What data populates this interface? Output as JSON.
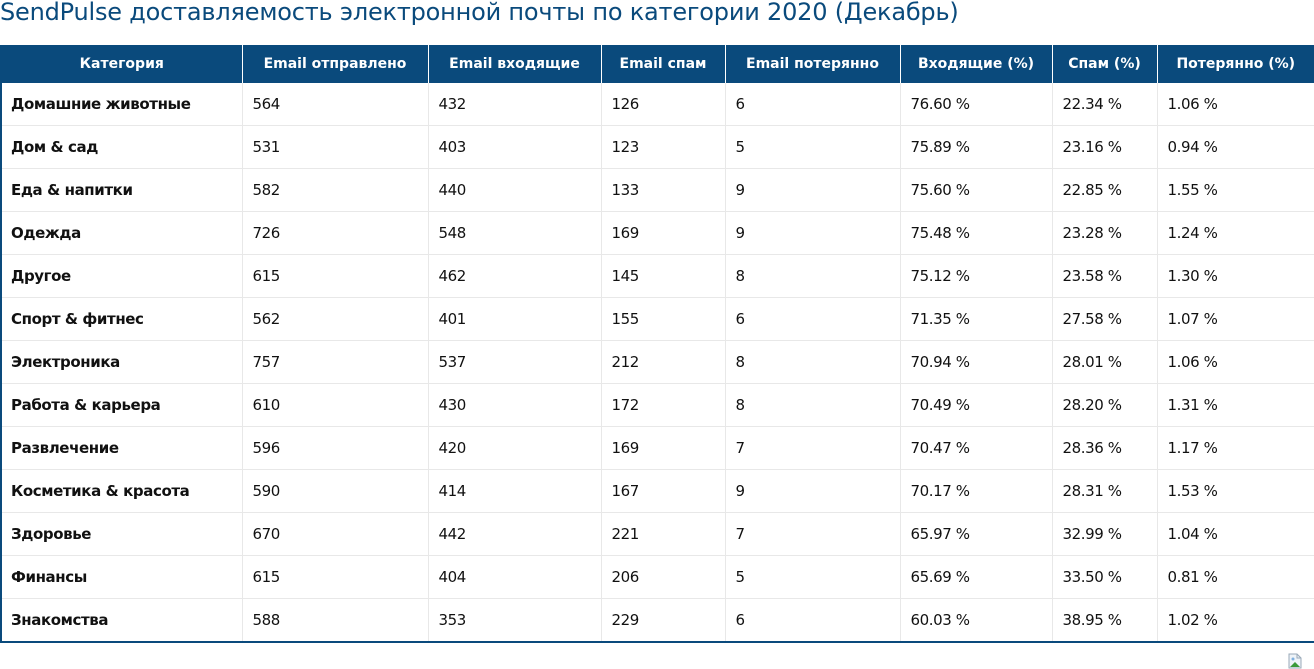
{
  "title": "SendPulse доставляемость электронной почты по категории 2020 (Декабрь)",
  "colors": {
    "header_bg": "#0a4a7c",
    "header_text": "#ffffff",
    "title": "#0a4a7c",
    "grid": "#e8e8e8"
  },
  "table": {
    "headers": [
      "Категория",
      "Email отправлено",
      "Email входящие",
      "Email спам",
      "Email потерянно",
      "Входящие (%)",
      "Спам (%)",
      "Потерянно (%)"
    ],
    "rows": [
      [
        "Домашние животные",
        "564",
        "432",
        "126",
        "6",
        "76.60 %",
        "22.34 %",
        "1.06 %"
      ],
      [
        "Дом & сад",
        "531",
        "403",
        "123",
        "5",
        "75.89 %",
        "23.16 %",
        "0.94 %"
      ],
      [
        "Еда & напитки",
        "582",
        "440",
        "133",
        "9",
        "75.60 %",
        "22.85 %",
        "1.55 %"
      ],
      [
        "Одежда",
        "726",
        "548",
        "169",
        "9",
        "75.48 %",
        "23.28 %",
        "1.24 %"
      ],
      [
        "Другое",
        "615",
        "462",
        "145",
        "8",
        "75.12 %",
        "23.58 %",
        "1.30 %"
      ],
      [
        "Спорт & фитнес",
        "562",
        "401",
        "155",
        "6",
        "71.35 %",
        "27.58 %",
        "1.07 %"
      ],
      [
        "Электроника",
        "757",
        "537",
        "212",
        "8",
        "70.94 %",
        "28.01 %",
        "1.06 %"
      ],
      [
        "Работа & карьера",
        "610",
        "430",
        "172",
        "8",
        "70.49 %",
        "28.20 %",
        "1.31 %"
      ],
      [
        "Развлечение",
        "596",
        "420",
        "169",
        "7",
        "70.47 %",
        "28.36 %",
        "1.17 %"
      ],
      [
        "Косметика & красота",
        "590",
        "414",
        "167",
        "9",
        "70.17 %",
        "28.31 %",
        "1.53 %"
      ],
      [
        "Здоровье",
        "670",
        "442",
        "221",
        "7",
        "65.97 %",
        "32.99 %",
        "1.04 %"
      ],
      [
        "Финансы",
        "615",
        "404",
        "206",
        "5",
        "65.69 %",
        "33.50 %",
        "0.81 %"
      ],
      [
        "Знакомства",
        "588",
        "353",
        "229",
        "6",
        "60.03 %",
        "38.95 %",
        "1.02 %"
      ]
    ]
  },
  "footer": {
    "icon": "broken-image-icon"
  }
}
